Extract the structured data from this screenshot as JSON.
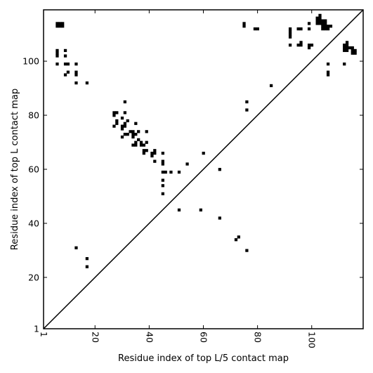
{
  "chart_data": {
    "type": "scatter",
    "xlabel": "Residue index of top L/5 contact map",
    "ylabel": "Residue index of top L contact map",
    "xlim": [
      1,
      119
    ],
    "ylim": [
      1,
      119
    ],
    "x_ticks": [
      1,
      20,
      40,
      60,
      80,
      100
    ],
    "y_ticks": [
      1,
      20,
      40,
      60,
      80,
      100
    ],
    "grid": false,
    "diagonal": true,
    "marker": "square",
    "color": "#000000",
    "upper_points": [
      [
        6,
        114
      ],
      [
        7,
        114
      ],
      [
        8,
        114
      ],
      [
        6,
        113
      ],
      [
        7,
        113
      ],
      [
        8,
        113
      ],
      [
        6,
        104
      ],
      [
        6,
        103
      ],
      [
        6,
        102
      ],
      [
        6,
        99
      ],
      [
        9,
        104
      ],
      [
        9,
        102
      ],
      [
        9,
        99
      ],
      [
        10,
        99
      ],
      [
        10,
        96
      ],
      [
        9,
        95
      ],
      [
        13,
        99
      ],
      [
        13,
        96
      ],
      [
        13,
        95
      ],
      [
        13,
        92
      ],
      [
        17,
        92
      ],
      [
        27,
        81
      ],
      [
        28,
        81
      ],
      [
        27,
        80
      ],
      [
        28,
        78
      ],
      [
        28,
        77
      ],
      [
        27,
        76
      ],
      [
        31,
        85
      ],
      [
        31,
        81
      ],
      [
        30,
        79
      ],
      [
        32,
        78
      ],
      [
        31,
        77
      ],
      [
        30,
        76
      ],
      [
        31,
        76
      ],
      [
        30,
        75
      ],
      [
        33,
        74
      ],
      [
        34,
        74
      ],
      [
        36,
        74
      ],
      [
        35,
        77
      ],
      [
        35,
        73
      ],
      [
        34,
        73
      ],
      [
        31,
        73
      ],
      [
        32,
        73
      ],
      [
        34,
        72
      ],
      [
        30,
        72
      ],
      [
        39,
        74
      ],
      [
        36,
        71
      ],
      [
        35,
        70
      ],
      [
        37,
        70
      ],
      [
        39,
        70
      ],
      [
        34,
        69
      ],
      [
        35,
        69
      ],
      [
        37,
        69
      ],
      [
        38,
        69
      ],
      [
        38,
        67
      ],
      [
        39,
        67
      ],
      [
        38,
        66
      ],
      [
        41,
        66
      ],
      [
        42,
        67
      ],
      [
        42,
        66
      ],
      [
        41,
        65
      ],
      [
        42,
        63
      ],
      [
        45,
        66
      ],
      [
        45,
        63
      ],
      [
        45,
        62
      ],
      [
        45,
        59
      ],
      [
        46,
        59
      ],
      [
        48,
        59
      ],
      [
        51,
        59
      ],
      [
        45,
        56
      ],
      [
        45,
        54
      ],
      [
        45,
        51
      ],
      [
        54,
        62
      ],
      [
        60,
        66
      ],
      [
        51,
        45
      ],
      [
        59,
        45
      ],
      [
        66,
        60
      ],
      [
        66,
        42
      ],
      [
        75,
        114
      ],
      [
        75,
        113
      ],
      [
        79,
        112
      ],
      [
        80,
        112
      ],
      [
        76,
        85
      ],
      [
        76,
        82
      ],
      [
        85,
        91
      ],
      [
        92,
        112
      ],
      [
        92,
        111
      ],
      [
        92,
        110
      ],
      [
        92,
        109
      ],
      [
        92,
        106
      ],
      [
        95,
        112
      ],
      [
        96,
        112
      ],
      [
        95,
        106
      ],
      [
        96,
        106
      ],
      [
        96,
        107
      ],
      [
        99,
        114
      ],
      [
        99,
        112
      ],
      [
        99,
        106
      ],
      [
        100,
        106
      ],
      [
        99,
        105
      ],
      [
        102,
        116
      ],
      [
        103,
        116
      ],
      [
        103,
        117
      ],
      [
        102,
        115
      ],
      [
        103,
        115
      ],
      [
        104,
        115
      ],
      [
        105,
        115
      ],
      [
        102,
        114
      ],
      [
        103,
        114
      ],
      [
        104,
        114
      ],
      [
        105,
        114
      ],
      [
        104,
        113
      ],
      [
        105,
        113
      ],
      [
        106,
        113
      ],
      [
        107,
        113
      ],
      [
        104,
        112
      ],
      [
        105,
        112
      ],
      [
        106,
        112
      ],
      [
        106,
        99
      ],
      [
        106,
        96
      ],
      [
        106,
        95
      ],
      [
        112,
        106
      ],
      [
        113,
        106
      ],
      [
        113,
        107
      ],
      [
        112,
        105
      ],
      [
        113,
        105
      ],
      [
        114,
        105
      ],
      [
        115,
        105
      ],
      [
        112,
        104
      ],
      [
        113,
        104
      ],
      [
        115,
        104
      ],
      [
        116,
        104
      ],
      [
        115,
        103
      ],
      [
        116,
        103
      ],
      [
        112,
        99
      ]
    ],
    "lower_points": [
      [
        13,
        31
      ],
      [
        17,
        27
      ],
      [
        17,
        24
      ],
      [
        72,
        34
      ],
      [
        73,
        35
      ],
      [
        76,
        30
      ]
    ]
  }
}
